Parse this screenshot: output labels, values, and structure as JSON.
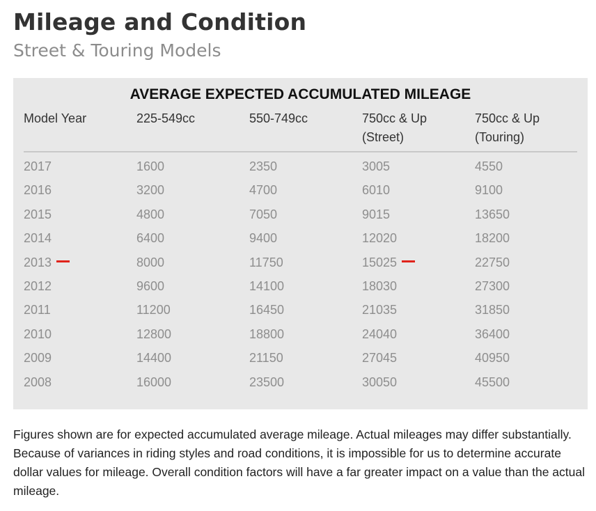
{
  "page": {
    "title": "Mileage and Condition",
    "subtitle": "Street & Touring Models"
  },
  "table": {
    "heading": "AVERAGE EXPECTED ACCUMULATED MILEAGE",
    "columns": [
      {
        "line1": "Model Year",
        "line2": ""
      },
      {
        "line1": "225-549cc",
        "line2": ""
      },
      {
        "line1": "550-749cc",
        "line2": ""
      },
      {
        "line1": "750cc & Up",
        "line2": "(Street)"
      },
      {
        "line1": "750cc & Up",
        "line2": "(Touring)"
      }
    ],
    "rows": [
      [
        "2017",
        "1600",
        "2350",
        "3005",
        "4550"
      ],
      [
        "2016",
        "3200",
        "4700",
        "6010",
        "9100"
      ],
      [
        "2015",
        "4800",
        "7050",
        "9015",
        "13650"
      ],
      [
        "2014",
        "6400",
        "9400",
        "12020",
        "18200"
      ],
      [
        "2013",
        "8000",
        "11750",
        "15025",
        "22750"
      ],
      [
        "2012",
        "9600",
        "14100",
        "18030",
        "27300"
      ],
      [
        "2011",
        "11200",
        "16450",
        "21035",
        "31850"
      ],
      [
        "2010",
        "12800",
        "18800",
        "24040",
        "36400"
      ],
      [
        "2009",
        "14400",
        "21150",
        "27045",
        "40950"
      ],
      [
        "2008",
        "16000",
        "23500",
        "30050",
        "45500"
      ]
    ],
    "highlight": {
      "row": "2013",
      "cells": [
        "2013",
        "15025"
      ],
      "marker_color": "#e0231b"
    }
  },
  "footnote": "Figures shown are for expected accumulated average mileage. Actual mileages may differ substantially. Because of variances in riding styles and road conditions, it is impossible for us to determine accurate dollar values for mileage. Overall condition factors will have a far greater impact on a value than the actual mileage.",
  "colors": {
    "panel_bg": "#e8e8e8",
    "title": "#333333",
    "subtitle": "#8c8c8c",
    "cell_text": "#8e8e8e"
  }
}
